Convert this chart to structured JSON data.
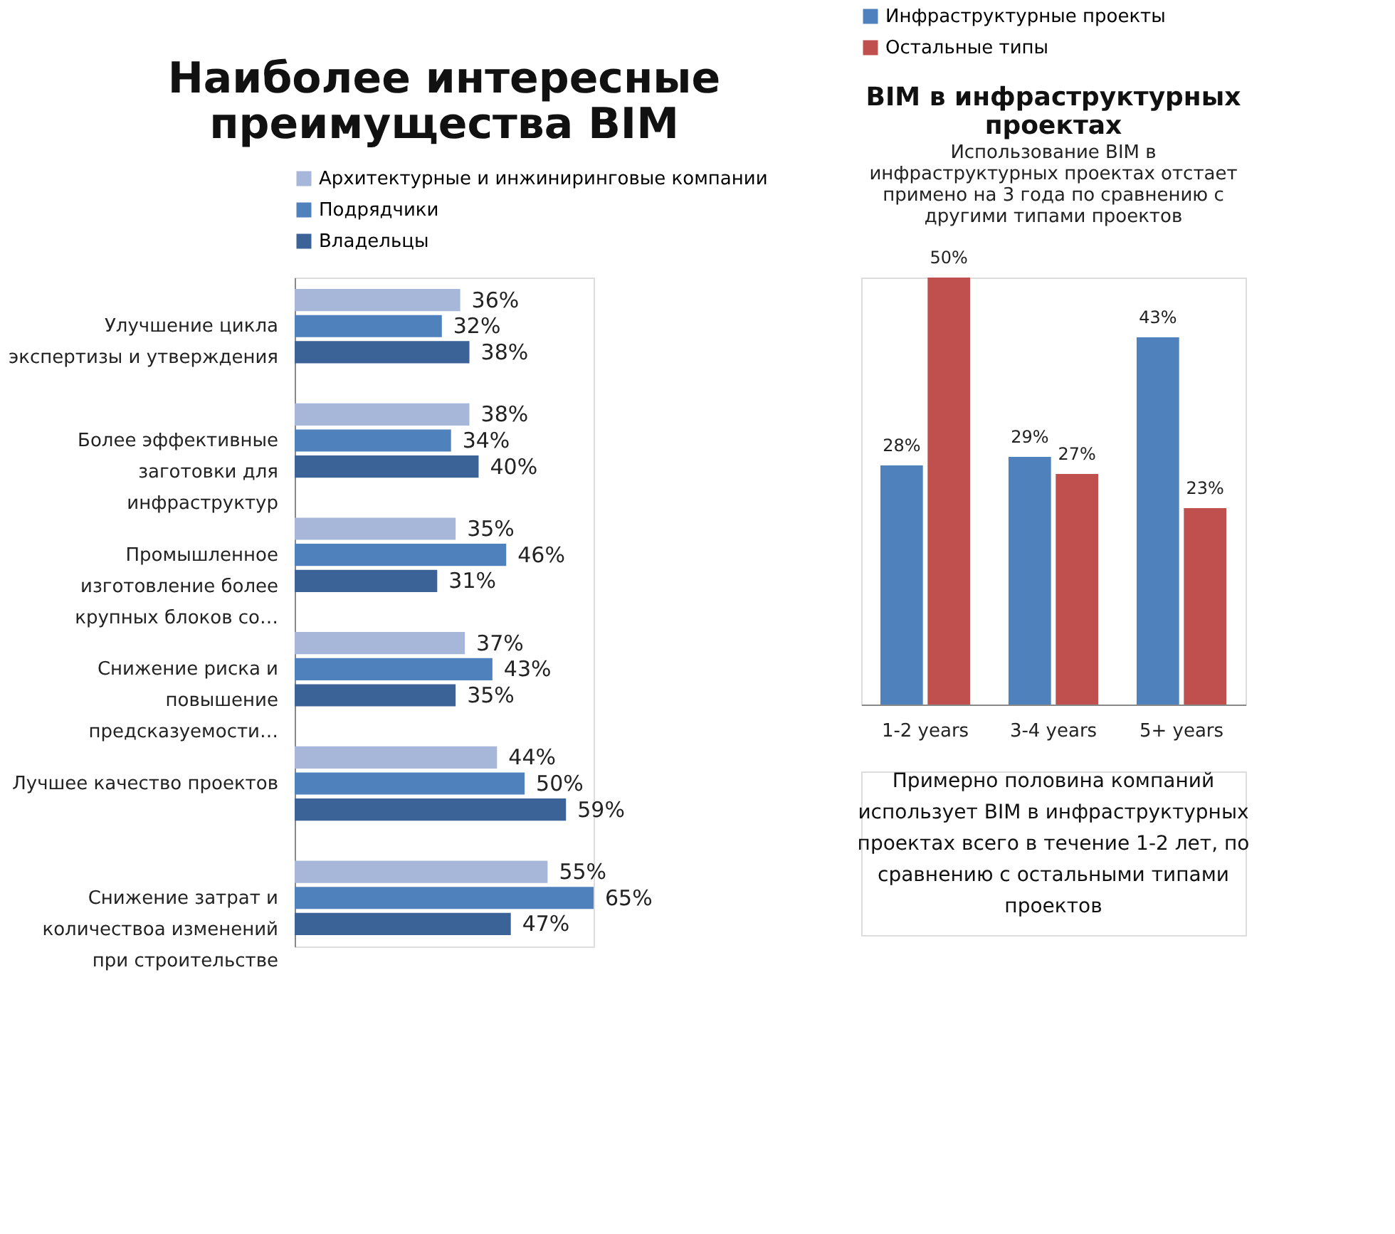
{
  "chart_data": [
    {
      "type": "bar",
      "orientation": "horizontal",
      "title": "Наиболее интересные\nпреимущества BIM",
      "legend": "top",
      "categories": [
        "Улучшение цикла\nэкспертизы и утверждения",
        "Более эффективные\nзаготовки для\nинфраструктур",
        "Промышленное\nизготовление более\nкрупных блоков со…",
        "Снижение риска и\nповышение\nпредсказуемости…",
        "Лучшее качество проектов",
        "Снижение затрат и\nколичествоа изменений\nпри строительстве"
      ],
      "series": [
        {
          "name": "Архитектурные  и инжиниринговые  компании",
          "color": "#a7b7d9",
          "values": [
            36,
            38,
            35,
            37,
            44,
            55
          ],
          "value_labels": [
            "36%",
            "38%",
            "35%",
            "37%",
            "44%",
            "55%"
          ]
        },
        {
          "name": "Подрядчики",
          "color": "#4f81bd",
          "values": [
            32,
            34,
            46,
            43,
            50,
            65
          ],
          "value_labels": [
            "32%",
            "34%",
            "46%",
            "43%",
            "50%",
            "65%"
          ]
        },
        {
          "name": "Владельцы",
          "color": "#3b6398",
          "values": [
            38,
            40,
            31,
            35,
            59,
            47
          ],
          "value_labels": [
            "38%",
            "40%",
            "31%",
            "35%",
            "59%",
            "47%"
          ]
        }
      ]
    },
    {
      "type": "bar",
      "title": "BIM в инфраструктурных\nпроектах",
      "subtitle": "Использование BIM в\nинфраструктурных проектах отстает\nпримено на 3 года по сравнению с\nдругими типами проектов",
      "legend": "top",
      "categories": [
        "1-2 years",
        "3-4 years",
        "5+ years"
      ],
      "series": [
        {
          "name": "Инфраструктурные проекты",
          "color": "#4f81bd",
          "values": [
            28,
            29,
            43
          ],
          "value_labels": [
            "28%",
            "29%",
            "43%"
          ]
        },
        {
          "name": "Остальные типы",
          "color": "#c0504d",
          "values": [
            50,
            27,
            23
          ],
          "value_labels": [
            "50%",
            "27%",
            "23%"
          ]
        }
      ],
      "annotations": [
        "Примерно половина компаний\nиспользует BIM в  инфраструктурных\nпроектах всего в течение 1-2 лет, по\nсравнению с остальными типами\nпроектов"
      ]
    }
  ]
}
